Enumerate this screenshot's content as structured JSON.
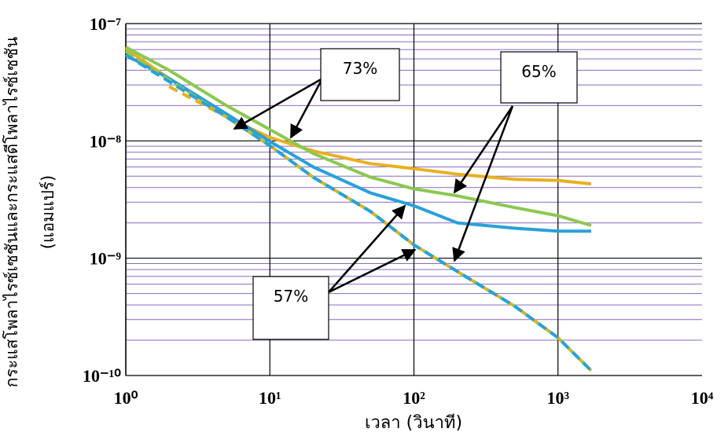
{
  "chart_data": {
    "type": "line",
    "x_label": "เวลา (วินาที)",
    "y_label": [
      "กระแสโพลาไรซ์เซชันและกระแสดีโพลาไรซ์เซชัน",
      "(แอมแปร์)"
    ],
    "x_scale": "log",
    "y_scale": "log",
    "xlim": [
      1,
      10000
    ],
    "ylim": [
      1e-10,
      1e-07
    ],
    "xticks": [
      {
        "value": 1,
        "label": "10⁰"
      },
      {
        "value": 10,
        "label": "10¹"
      },
      {
        "value": 100,
        "label": "10²"
      },
      {
        "value": 1000,
        "label": "10³"
      },
      {
        "value": 10000,
        "label": "10⁴"
      }
    ],
    "yticks": [
      {
        "value": 1e-10,
        "label": "10⁻¹⁰"
      },
      {
        "value": 1e-09,
        "label": "10⁻⁹"
      },
      {
        "value": 1e-08,
        "label": "10⁻⁸"
      },
      {
        "value": 1e-07,
        "label": "10⁻⁷"
      }
    ],
    "grid": true,
    "minor_grid_color": "#8a6cc0",
    "grid_color": "#000000",
    "x": [
      1,
      2,
      5,
      10,
      20,
      50,
      100,
      200,
      500,
      1000,
      1700
    ],
    "series": [
      {
        "color": "#e8b020",
        "dash": false,
        "values": [
          6.1e-08,
          3.4e-08,
          1.6e-08,
          1.07e-08,
          8.2e-09,
          6.4e-09,
          5.8e-09,
          5.2e-09,
          4.7e-09,
          4.6e-09,
          4.3e-09
        ]
      },
      {
        "color": "#8cc850",
        "dash": false,
        "values": [
          6.3e-08,
          4e-08,
          2e-08,
          1.25e-08,
          7.8e-09,
          4.9e-09,
          3.9e-09,
          3.4e-09,
          2.7e-09,
          2.3e-09,
          1.9e-09
        ]
      },
      {
        "color": "#2aa0d8",
        "dash": false,
        "values": [
          5.4e-08,
          3.4e-08,
          1.7e-08,
          9.9e-09,
          6e-09,
          3.6e-09,
          2.8e-09,
          2e-09,
          1.8e-09,
          1.7e-09,
          1.7e-09
        ]
      },
      {
        "color": "#e8b020",
        "dash": true,
        "values": [
          null,
          2.9e-08,
          1.6e-08,
          9.1e-09,
          4.9e-09,
          2.5e-09,
          1.3e-09,
          7.7e-10,
          3.9e-10,
          2.1e-10,
          1.1e-10
        ]
      },
      {
        "color": "#8cc850",
        "dash": true,
        "values": [
          5.8e-08,
          3.3e-08,
          1.6e-08,
          9.1e-09,
          4.9e-09,
          2.5e-09,
          1.3e-09,
          7.7e-10,
          3.9e-10,
          2.1e-10,
          1.1e-10
        ]
      },
      {
        "color": "#2aa0d8",
        "dash": true,
        "values": [
          5.4e-08,
          3.2e-08,
          1.6e-08,
          9.1e-09,
          4.9e-09,
          2.5e-09,
          1.3e-09,
          7.7e-10,
          3.9e-10,
          2.1e-10,
          1.1e-10
        ]
      }
    ],
    "annotations": [
      "73%",
      "65%",
      "57%"
    ]
  }
}
